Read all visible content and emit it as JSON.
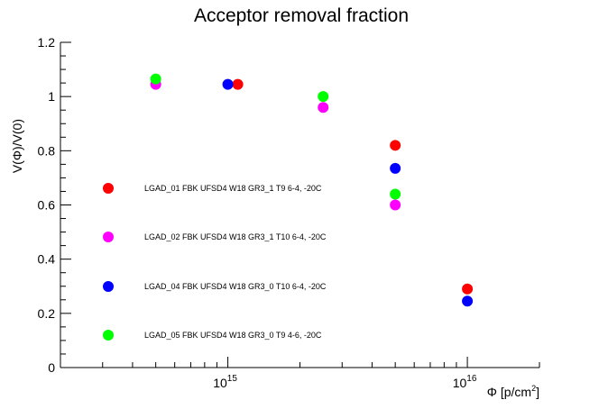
{
  "chart_data": {
    "type": "scatter",
    "title": "Acceptor removal fraction",
    "xlabel": "Φ [p/cm²]",
    "ylabel": "V(Φ)/V(0)",
    "xscale": "log",
    "xlim": [
      200000000000000.0,
      2e+16
    ],
    "ylim": [
      0,
      1.2
    ],
    "grid": false,
    "yticks": [
      {
        "value": 0,
        "label": "0"
      },
      {
        "value": 0.2,
        "label": "0.2"
      },
      {
        "value": 0.4,
        "label": "0.4"
      },
      {
        "value": 0.6,
        "label": "0.6"
      },
      {
        "value": 0.8,
        "label": "0.8"
      },
      {
        "value": 1,
        "label": "1"
      },
      {
        "value": 1.2,
        "label": "1.2"
      }
    ],
    "xticks_major": [
      {
        "value": 1000000000000000.0,
        "mantissa": "10",
        "exponent": "15"
      },
      {
        "value": 1e+16,
        "mantissa": "10",
        "exponent": "16"
      }
    ],
    "legend_position": "left-inside",
    "series": [
      {
        "name": "LGAD_01 FBK UFSD4 W18 GR3_1 T9 6-4, -20C",
        "color": "#ff0000",
        "points": [
          {
            "x": 1100000000000000.0,
            "y": 1.045
          },
          {
            "x": 5000000000000000.0,
            "y": 0.82
          },
          {
            "x": 1e+16,
            "y": 0.29
          }
        ]
      },
      {
        "name": "LGAD_02 FBK UFSD4 W18 GR3_1 T10 6-4, -20C",
        "color": "#ff00ff",
        "points": [
          {
            "x": 500000000000000.0,
            "y": 1.045
          },
          {
            "x": 2500000000000000.0,
            "y": 0.96
          },
          {
            "x": 5000000000000000.0,
            "y": 0.6
          }
        ]
      },
      {
        "name": "LGAD_04 FBK UFSD4 W18 GR3_0 T10 6-4, -20C",
        "color": "#0000ff",
        "points": [
          {
            "x": 1000000000000000.0,
            "y": 1.045
          },
          {
            "x": 5000000000000000.0,
            "y": 0.735
          },
          {
            "x": 1e+16,
            "y": 0.245
          }
        ]
      },
      {
        "name": "LGAD_05 FBK UFSD4 W18 GR3_0 T9 4-6, -20C",
        "color": "#00ff00",
        "points": [
          {
            "x": 500000000000000.0,
            "y": 1.065
          },
          {
            "x": 2500000000000000.0,
            "y": 1.0
          },
          {
            "x": 5000000000000000.0,
            "y": 0.64
          }
        ]
      }
    ]
  }
}
